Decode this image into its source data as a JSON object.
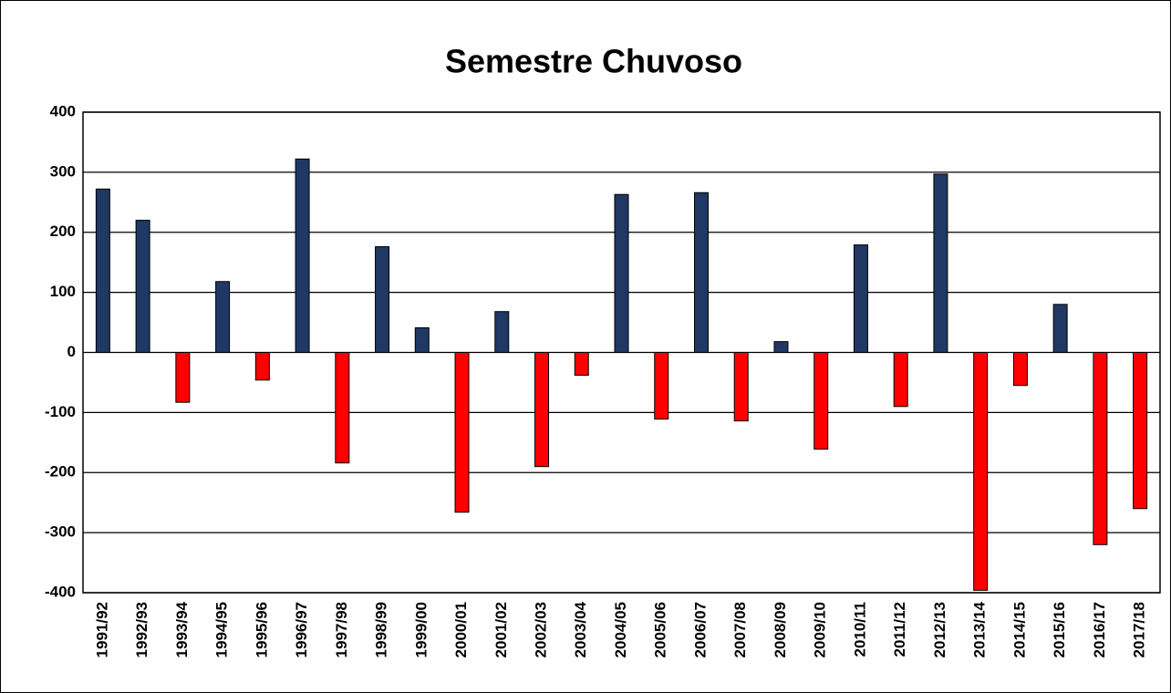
{
  "chart_data": {
    "type": "bar",
    "title": "Semestre Chuvoso",
    "categories": [
      "1991/92",
      "1992/93",
      "1993/94",
      "1994/95",
      "1995/96",
      "1996/97",
      "1997/98",
      "1998/99",
      "1999/00",
      "2000/01",
      "2001/02",
      "2002/03",
      "2003/04",
      "2004/05",
      "2005/06",
      "2006/07",
      "2007/08",
      "2008/09",
      "2009/10",
      "2010/11",
      "2011/12",
      "2012/13",
      "2013/14",
      "2014/15",
      "2015/16",
      "2016/17",
      "2017/18"
    ],
    "values": [
      272,
      220,
      -83,
      118,
      -46,
      322,
      -184,
      176,
      41,
      -266,
      68,
      -190,
      -38,
      263,
      -111,
      266,
      -114,
      18,
      -161,
      179,
      -90,
      297,
      -396,
      -55,
      80,
      -320,
      -260
    ],
    "positive_color": "#1f3864",
    "negative_color": "#ff0000",
    "ylim": [
      -400,
      400
    ],
    "yticks": [
      -400,
      -300,
      -200,
      -100,
      0,
      100,
      200,
      300,
      400
    ],
    "grid": true
  }
}
